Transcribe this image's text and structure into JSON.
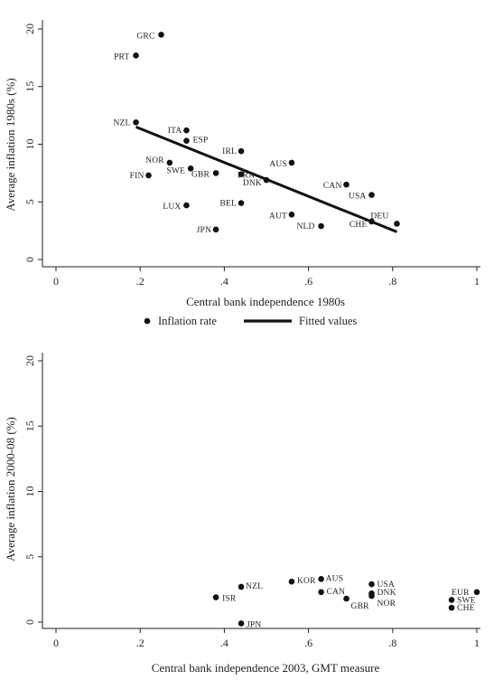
{
  "chart_data": [
    {
      "type": "scatter",
      "xlabel": "Central bank independence 1980s",
      "ylabel": "Average inflation 1980s (%)",
      "xlim": [
        0,
        1
      ],
      "ylim": [
        0,
        20
      ],
      "xticks": [
        {
          "value": 0,
          "label": "0"
        },
        {
          "value": 0.2,
          "label": ".2"
        },
        {
          "value": 0.4,
          "label": ".4"
        },
        {
          "value": 0.6,
          "label": ".6"
        },
        {
          "value": 0.8,
          "label": ".8"
        },
        {
          "value": 1,
          "label": "1"
        }
      ],
      "yticks": [
        {
          "value": 0,
          "label": "0"
        },
        {
          "value": 5,
          "label": "5"
        },
        {
          "value": 10,
          "label": "10"
        },
        {
          "value": 15,
          "label": "15"
        },
        {
          "value": 20,
          "label": "20"
        }
      ],
      "grid": false,
      "legend": {
        "placement": "bottom",
        "entries": [
          {
            "label": "Inflation rate",
            "marker": "dot"
          },
          {
            "label": "Fitted values",
            "marker": "line"
          }
        ]
      },
      "series": [
        {
          "name": "Inflation rate",
          "points": [
            {
              "label": "GRC",
              "x": 0.25,
              "y": 19.5
            },
            {
              "label": "PRT",
              "x": 0.19,
              "y": 17.7
            },
            {
              "label": "NZL",
              "x": 0.19,
              "y": 11.9
            },
            {
              "label": "ITA",
              "x": 0.31,
              "y": 11.2
            },
            {
              "label": "ESP",
              "x": 0.31,
              "y": 10.3
            },
            {
              "label": "IRL",
              "x": 0.44,
              "y": 9.4
            },
            {
              "label": "AUS",
              "x": 0.56,
              "y": 8.4
            },
            {
              "label": "NOR",
              "x": 0.27,
              "y": 8.4
            },
            {
              "label": "SWE",
              "x": 0.32,
              "y": 7.9
            },
            {
              "label": "FIN",
              "x": 0.22,
              "y": 7.3
            },
            {
              "label": "GBR",
              "x": 0.38,
              "y": 7.5
            },
            {
              "label": "FRA",
              "x": 0.44,
              "y": 7.4
            },
            {
              "label": "DNK",
              "x": 0.5,
              "y": 6.9
            },
            {
              "label": "CAN",
              "x": 0.69,
              "y": 6.5
            },
            {
              "label": "USA",
              "x": 0.75,
              "y": 5.6
            },
            {
              "label": "LUX",
              "x": 0.31,
              "y": 4.7
            },
            {
              "label": "BEL",
              "x": 0.44,
              "y": 4.9
            },
            {
              "label": "AUT",
              "x": 0.56,
              "y": 3.9
            },
            {
              "label": "CHE",
              "x": 0.75,
              "y": 3.3
            },
            {
              "label": "DEU",
              "x": 0.81,
              "y": 3.1
            },
            {
              "label": "NLD",
              "x": 0.63,
              "y": 2.9
            },
            {
              "label": "JPN",
              "x": 0.38,
              "y": 2.6
            }
          ]
        },
        {
          "name": "Fitted values",
          "line": [
            {
              "x": 0.19,
              "y": 11.5
            },
            {
              "x": 0.81,
              "y": 2.4
            }
          ]
        }
      ]
    },
    {
      "type": "scatter",
      "xlabel": "Central bank independence 2003, GMT measure",
      "ylabel": "Average inflation 2000-08 (%)",
      "xlim": [
        0,
        1
      ],
      "ylim": [
        0,
        20
      ],
      "xticks": [
        {
          "value": 0,
          "label": "0"
        },
        {
          "value": 0.2,
          "label": ".2"
        },
        {
          "value": 0.4,
          "label": ".4"
        },
        {
          "value": 0.6,
          "label": ".6"
        },
        {
          "value": 0.8,
          "label": ".8"
        },
        {
          "value": 1,
          "label": "1"
        }
      ],
      "yticks": [
        {
          "value": 0,
          "label": "0"
        },
        {
          "value": 5,
          "label": "5"
        },
        {
          "value": 10,
          "label": "10"
        },
        {
          "value": 15,
          "label": "15"
        },
        {
          "value": 20,
          "label": "20"
        }
      ],
      "grid": false,
      "series": [
        {
          "name": "Inflation rate",
          "points": [
            {
              "label": "JPN",
              "x": 0.44,
              "y": -0.1
            },
            {
              "label": "ISR",
              "x": 0.38,
              "y": 1.9
            },
            {
              "label": "NZL",
              "x": 0.44,
              "y": 2.7
            },
            {
              "label": "KOR",
              "x": 0.56,
              "y": 3.1
            },
            {
              "label": "AUS",
              "x": 0.63,
              "y": 3.3
            },
            {
              "label": "CAN",
              "x": 0.63,
              "y": 2.3
            },
            {
              "label": "GBR",
              "x": 0.69,
              "y": 1.8
            },
            {
              "label": "USA",
              "x": 0.75,
              "y": 2.9
            },
            {
              "label": "DNK",
              "x": 0.75,
              "y": 2.2
            },
            {
              "label": "NOR",
              "x": 0.75,
              "y": 2.0
            },
            {
              "label": "EUR",
              "x": 1.0,
              "y": 2.3
            },
            {
              "label": "SWE",
              "x": 0.94,
              "y": 1.7
            },
            {
              "label": "CHE",
              "x": 0.94,
              "y": 1.1
            }
          ]
        }
      ]
    }
  ]
}
